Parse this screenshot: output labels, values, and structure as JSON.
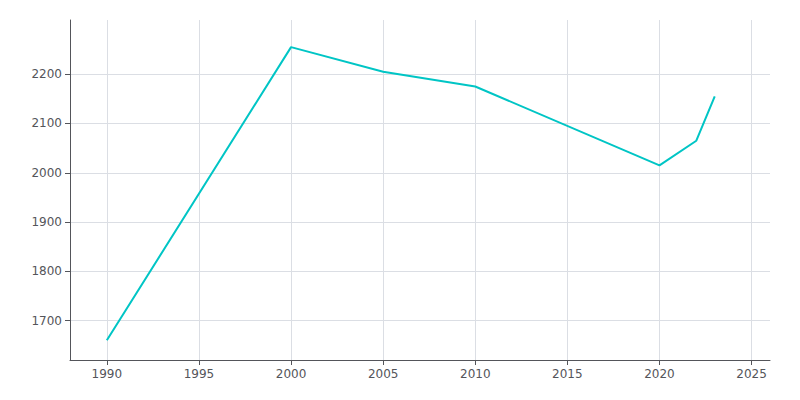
{
  "chart_data": {
    "type": "line",
    "x": [
      1990,
      2000,
      2005,
      2010,
      2020,
      2022,
      2023
    ],
    "values": [
      1660,
      2255,
      2205,
      2175,
      2015,
      2065,
      2155
    ],
    "color": "#00C5C5",
    "xlim": [
      1988,
      2026
    ],
    "ylim": [
      1620,
      2310
    ],
    "xticks": [
      1990,
      1995,
      2000,
      2005,
      2010,
      2015,
      2020,
      2025
    ],
    "yticks": [
      1700,
      1800,
      1900,
      2000,
      2100,
      2200
    ],
    "grid": true
  }
}
